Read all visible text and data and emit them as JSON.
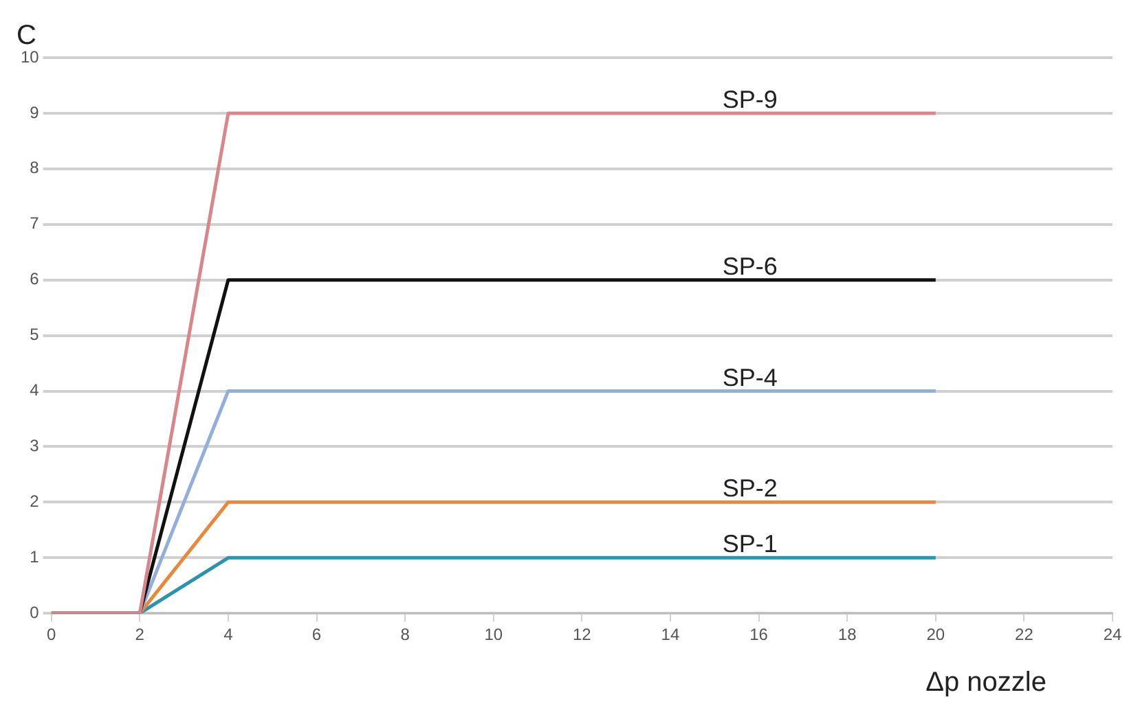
{
  "chart_data": {
    "type": "line",
    "xlabel": "Δp nozzle",
    "ylabel": "C",
    "x": [
      0,
      2,
      4,
      20
    ],
    "series": [
      {
        "name": "SP-9",
        "color": "#d9868a",
        "values": [
          0,
          0,
          9,
          9
        ]
      },
      {
        "name": "SP-6",
        "color": "#111111",
        "values": [
          0,
          0,
          6,
          6
        ]
      },
      {
        "name": "SP-4",
        "color": "#92aedb",
        "values": [
          0,
          0,
          4,
          4
        ]
      },
      {
        "name": "SP-2",
        "color": "#e8883a",
        "values": [
          0,
          0,
          2,
          2
        ]
      },
      {
        "name": "SP-1",
        "color": "#2a94b0",
        "values": [
          0,
          0,
          1,
          1
        ]
      }
    ],
    "xlim": [
      0,
      24
    ],
    "xticks": [
      0,
      2,
      4,
      6,
      8,
      10,
      12,
      14,
      16,
      18,
      20,
      22,
      24
    ],
    "ylim": [
      0,
      10
    ],
    "yticks": [
      0,
      1,
      2,
      3,
      4,
      5,
      6,
      7,
      8,
      9,
      10
    ],
    "grid": "y",
    "legend": false,
    "marker": "none",
    "line_style": "solid"
  }
}
